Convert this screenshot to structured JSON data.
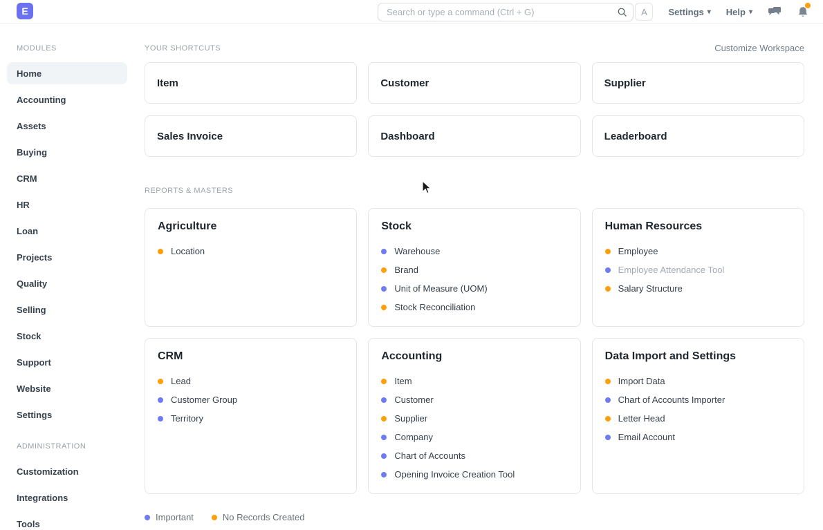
{
  "navbar": {
    "logo_letter": "E",
    "search_placeholder": "Search or type a command (Ctrl + G)",
    "avatar_letter": "A",
    "settings_label": "Settings",
    "help_label": "Help"
  },
  "sidebar": {
    "modules_header": "MODULES",
    "modules": [
      "Home",
      "Accounting",
      "Assets",
      "Buying",
      "CRM",
      "HR",
      "Loan",
      "Projects",
      "Quality",
      "Selling",
      "Stock",
      "Support",
      "Website",
      "Settings"
    ],
    "active_module": "Home",
    "admin_header": "ADMINISTRATION",
    "admin_items": [
      "Customization",
      "Integrations",
      "Tools"
    ]
  },
  "main": {
    "shortcuts_header": "YOUR SHORTCUTS",
    "customize_link": "Customize Workspace",
    "shortcuts": [
      "Item",
      "Customer",
      "Supplier",
      "Sales Invoice",
      "Dashboard",
      "Leaderboard"
    ],
    "reports_header": "REPORTS & MASTERS",
    "cards": [
      {
        "title": "Agriculture",
        "links": [
          {
            "label": "Location",
            "dot": "orange",
            "muted": false
          }
        ]
      },
      {
        "title": "Stock",
        "links": [
          {
            "label": "Warehouse",
            "dot": "blue",
            "muted": false
          },
          {
            "label": "Brand",
            "dot": "orange",
            "muted": false
          },
          {
            "label": "Unit of Measure (UOM)",
            "dot": "blue",
            "muted": false
          },
          {
            "label": "Stock Reconciliation",
            "dot": "orange",
            "muted": false
          }
        ]
      },
      {
        "title": "Human Resources",
        "links": [
          {
            "label": "Employee",
            "dot": "orange",
            "muted": false
          },
          {
            "label": "Employee Attendance Tool",
            "dot": "blue",
            "muted": true
          },
          {
            "label": "Salary Structure",
            "dot": "orange",
            "muted": false
          }
        ]
      },
      {
        "title": "CRM",
        "links": [
          {
            "label": "Lead",
            "dot": "orange",
            "muted": false
          },
          {
            "label": "Customer Group",
            "dot": "blue",
            "muted": false
          },
          {
            "label": "Territory",
            "dot": "blue",
            "muted": false
          }
        ]
      },
      {
        "title": "Accounting",
        "links": [
          {
            "label": "Item",
            "dot": "orange",
            "muted": false
          },
          {
            "label": "Customer",
            "dot": "blue",
            "muted": false
          },
          {
            "label": "Supplier",
            "dot": "orange",
            "muted": false
          },
          {
            "label": "Company",
            "dot": "blue",
            "muted": false
          },
          {
            "label": "Chart of Accounts",
            "dot": "blue",
            "muted": false
          },
          {
            "label": "Opening Invoice Creation Tool",
            "dot": "blue",
            "muted": false
          }
        ]
      },
      {
        "title": "Data Import and Settings",
        "links": [
          {
            "label": "Import Data",
            "dot": "orange",
            "muted": false
          },
          {
            "label": "Chart of Accounts Importer",
            "dot": "blue",
            "muted": false
          },
          {
            "label": "Letter Head",
            "dot": "orange",
            "muted": false
          },
          {
            "label": "Email Account",
            "dot": "blue",
            "muted": false
          }
        ]
      }
    ],
    "legend": [
      {
        "label": "Important",
        "dot": "blue"
      },
      {
        "label": "No Records Created",
        "dot": "orange"
      }
    ]
  },
  "colors": {
    "brand": "#6c72ef",
    "dot_blue": "#6e7bf4",
    "dot_orange": "#ffa00a",
    "notification_badge": "#ffa00a"
  }
}
